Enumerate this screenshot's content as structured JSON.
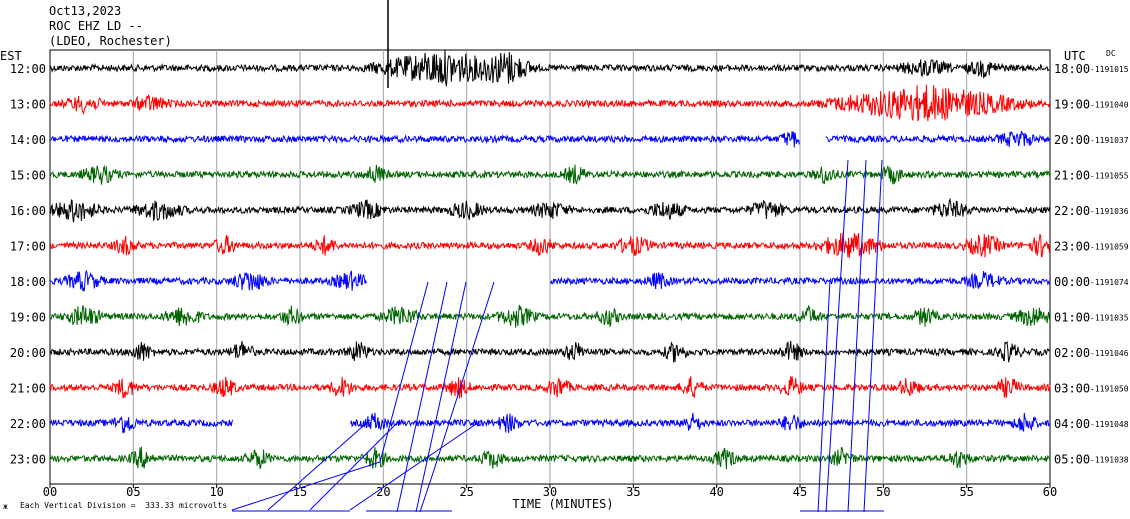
{
  "header": {
    "date": "Oct13,2023",
    "station": "ROC EHZ LD --",
    "network": "(LDEO, Rochester)"
  },
  "left_zone": "EST",
  "right_zone": "UTC",
  "dc_label": "DC",
  "footer": {
    "scale_text": "Each Vertical Division =  333.33 microvolts",
    "corner_mark": "ж"
  },
  "colors": {
    "cycle": [
      "#000000",
      "#ff0000",
      "#0000ff",
      "#006400"
    ],
    "event_line": "#0000ff"
  },
  "chart_data": {
    "type": "line",
    "xlabel": "TIME (MINUTES)",
    "xlim": [
      0,
      60
    ],
    "x_ticks": [
      "00",
      "05",
      "10",
      "15",
      "20",
      "25",
      "30",
      "35",
      "40",
      "45",
      "50",
      "55",
      "60"
    ],
    "grid": true,
    "series": [
      {
        "left": "12:00",
        "right": "18:00",
        "dc": "1191015"
      },
      {
        "left": "13:00",
        "right": "19:00",
        "dc": "1191040"
      },
      {
        "left": "14:00",
        "right": "20:00",
        "dc": "1191037"
      },
      {
        "left": "15:00",
        "right": "21:00",
        "dc": "1191055"
      },
      {
        "left": "16:00",
        "right": "22:00",
        "dc": "1191036"
      },
      {
        "left": "17:00",
        "right": "23:00",
        "dc": "1191059"
      },
      {
        "left": "18:00",
        "right": "00:00",
        "dc": "1191074"
      },
      {
        "left": "19:00",
        "right": "01:00",
        "dc": "1191035"
      },
      {
        "left": "20:00",
        "right": "02:00",
        "dc": "1191046"
      },
      {
        "left": "21:00",
        "right": "03:00",
        "dc": "1191050"
      },
      {
        "left": "22:00",
        "right": "04:00",
        "dc": "1191048"
      },
      {
        "left": "23:00",
        "right": "05:00",
        "dc": "1191038"
      }
    ]
  }
}
